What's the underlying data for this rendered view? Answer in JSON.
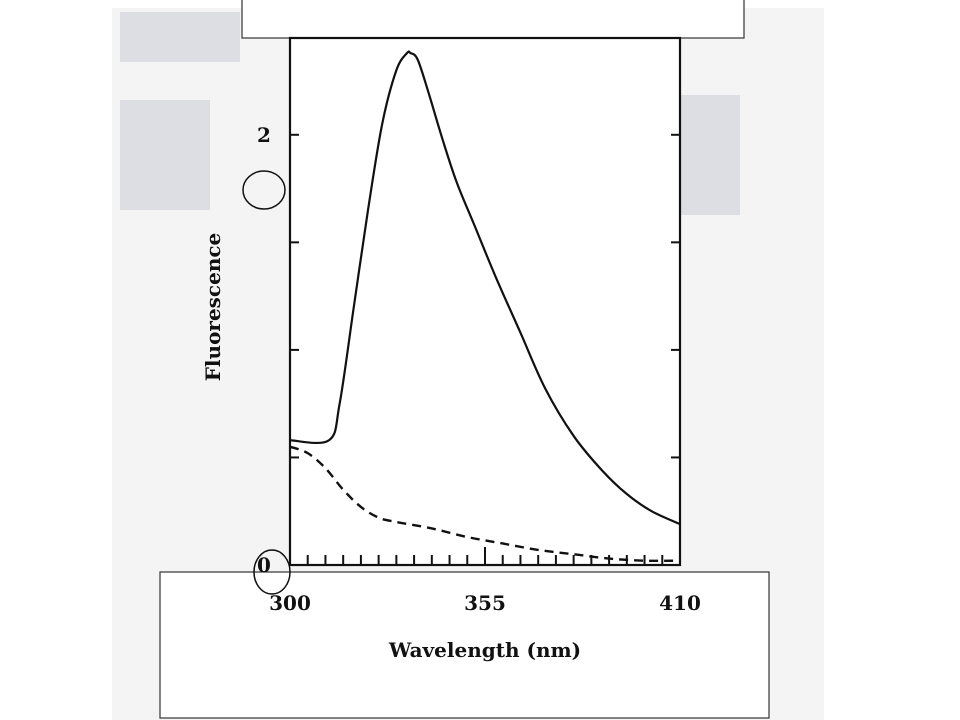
{
  "chart_data": {
    "type": "line",
    "xlabel": "Wavelength (nm)",
    "ylabel": "Fluorescence",
    "xlim": [
      300,
      410
    ],
    "ylim": [
      0,
      2.45
    ],
    "x_ticks": [
      "300",
      "355",
      "410"
    ],
    "x_tick_values": [
      300,
      355,
      410
    ],
    "y_ticks": [
      "0",
      "2"
    ],
    "y_tick_values": [
      0,
      2
    ],
    "grid": false,
    "legend": "none",
    "series": [
      {
        "style": "solid",
        "x": [
          300,
          311,
          314,
          318,
          322,
          326,
          330,
          333,
          334,
          336,
          339,
          343,
          347,
          352,
          358,
          365,
          372,
          380,
          388,
          395,
          402,
          410
        ],
        "y": [
          0.58,
          0.58,
          0.75,
          1.2,
          1.65,
          2.05,
          2.3,
          2.38,
          2.38,
          2.35,
          2.2,
          1.98,
          1.78,
          1.58,
          1.34,
          1.08,
          0.82,
          0.6,
          0.44,
          0.33,
          0.25,
          0.19
        ]
      },
      {
        "style": "dashed",
        "x": [
          300,
          305,
          310,
          315,
          320,
          325,
          330,
          340,
          350,
          360,
          370,
          380,
          390,
          400,
          410
        ],
        "y": [
          0.55,
          0.52,
          0.45,
          0.35,
          0.27,
          0.22,
          0.2,
          0.17,
          0.13,
          0.1,
          0.07,
          0.05,
          0.03,
          0.02,
          0.02
        ]
      }
    ]
  }
}
